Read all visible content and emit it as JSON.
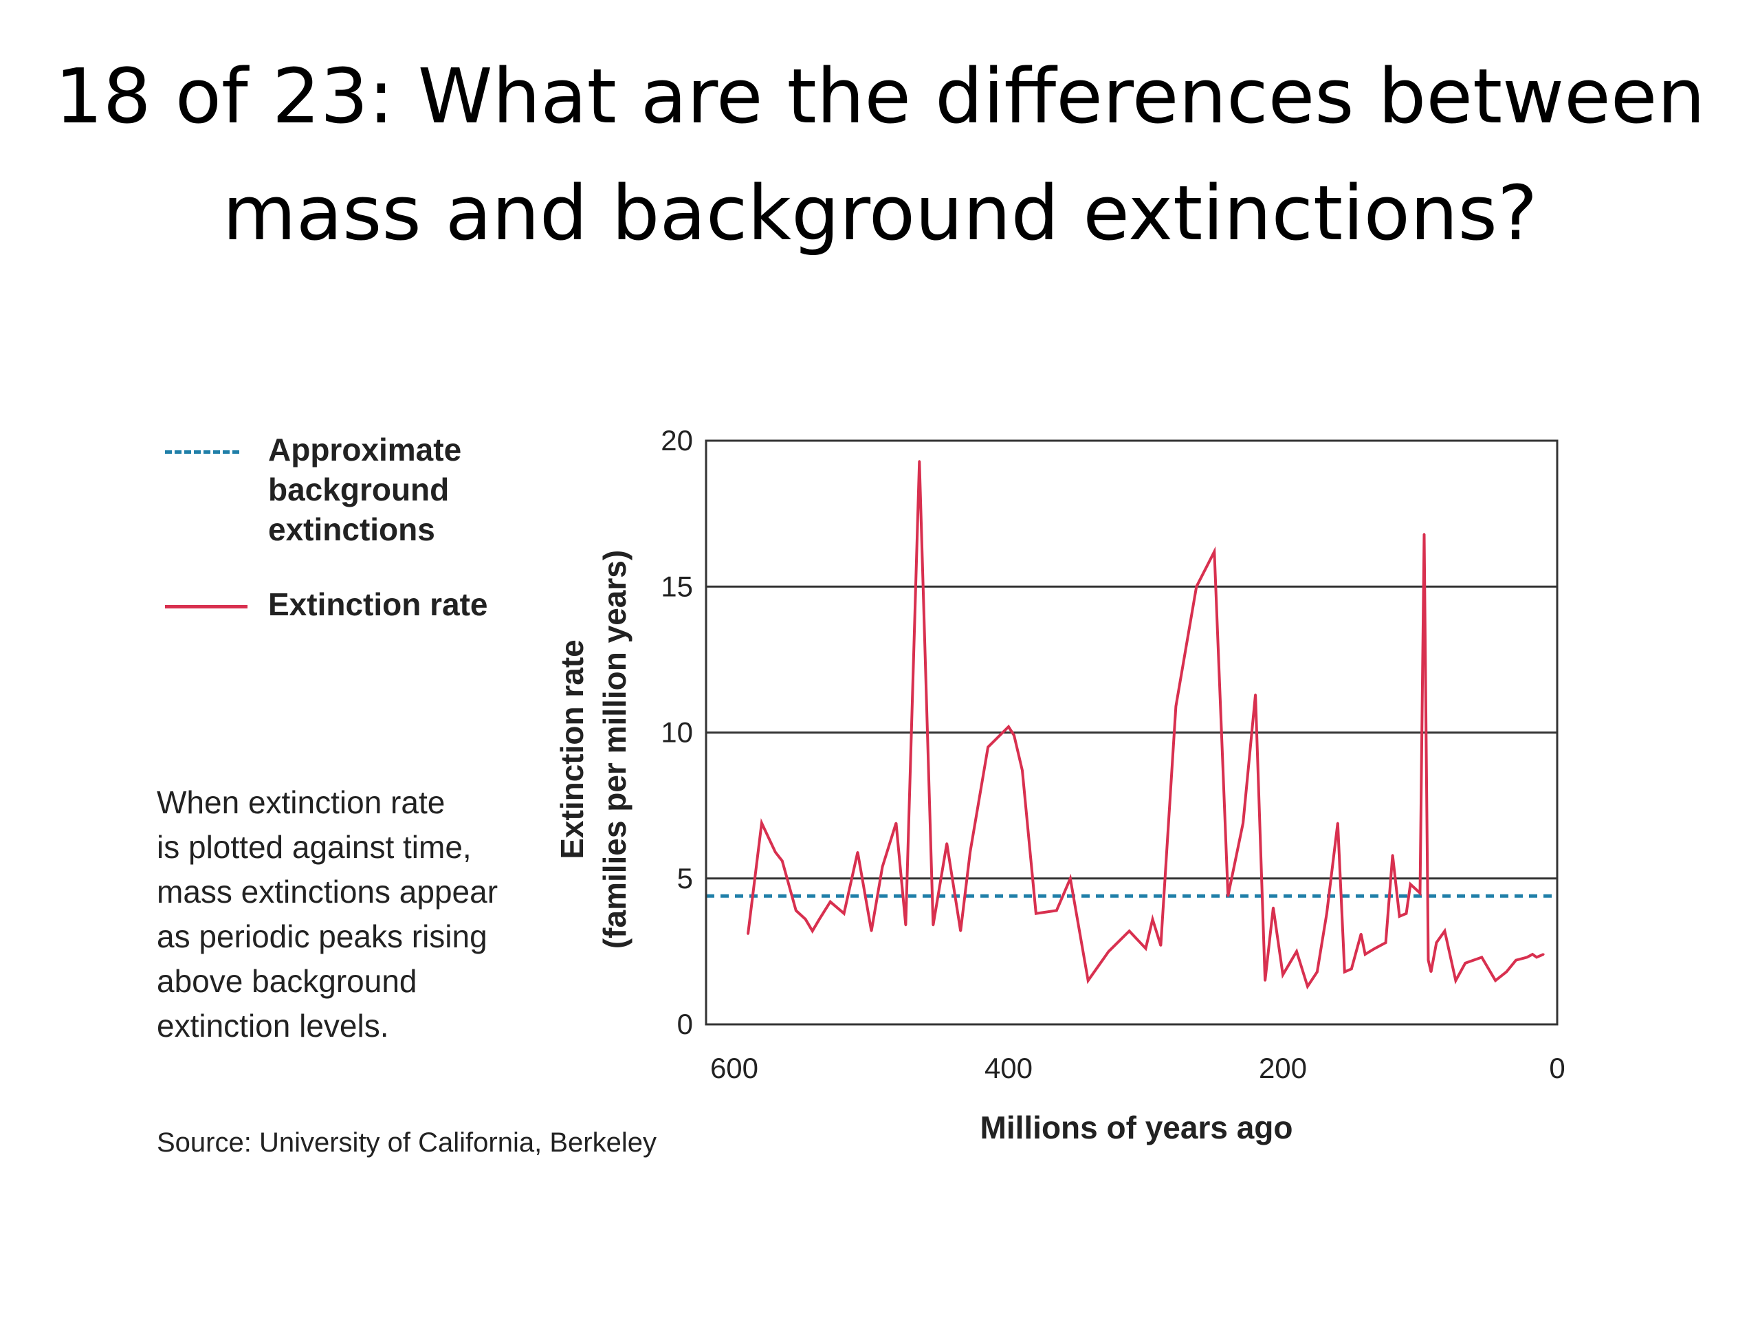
{
  "slide": {
    "title_line1": "18 of 23: What are the differences between",
    "title_line2": "mass and background extinctions?"
  },
  "legend": {
    "background_label_line1": "Approximate",
    "background_label_line2": "background",
    "background_label_line3": "extinctions",
    "rate_label": "Extinction rate"
  },
  "caption": {
    "lines": [
      "When extinction rate",
      "is plotted against time,",
      "mass extinctions appear",
      "as periodic peaks rising",
      "above background",
      "extinction levels."
    ]
  },
  "source": "Source: University of California, Berkeley",
  "colors": {
    "rate_line": "#d8304f",
    "background_line": "#1f7fa8",
    "grid": "#333333"
  },
  "chart_data": {
    "type": "line",
    "xlabel": "Millions of years ago",
    "ylabel_line1": "Extinction rate",
    "ylabel_line2": "(families per million years)",
    "xlim": [
      600,
      0
    ],
    "ylim": [
      0,
      20
    ],
    "x_ticks": [
      600,
      400,
      200,
      0
    ],
    "y_ticks": [
      0,
      5,
      10,
      15,
      20
    ],
    "grid": "horizontal",
    "background_level": 4.4,
    "series": [
      {
        "name": "Extinction rate",
        "x": [
          590,
          580,
          570,
          565,
          555,
          548,
          543,
          538,
          530,
          520,
          510,
          500,
          492,
          482,
          475,
          465,
          455,
          445,
          435,
          428,
          415,
          400,
          396,
          390,
          380,
          365,
          355,
          342,
          327,
          312,
          300,
          295,
          289,
          278,
          263,
          250,
          240,
          229,
          220,
          213,
          207,
          200,
          190,
          182,
          175,
          168,
          160,
          155,
          150,
          143,
          140,
          133,
          125,
          120,
          115,
          110,
          107,
          100,
          97,
          94,
          92,
          88,
          82,
          74,
          67,
          55,
          45,
          37,
          30,
          22,
          18,
          15,
          10
        ],
        "values": [
          3.1,
          6.9,
          5.9,
          5.6,
          3.9,
          3.6,
          3.2,
          3.6,
          4.2,
          3.8,
          5.9,
          3.2,
          5.4,
          6.9,
          3.4,
          19.3,
          3.4,
          6.2,
          3.2,
          5.9,
          9.5,
          10.2,
          9.9,
          8.7,
          3.8,
          3.9,
          5.0,
          1.5,
          2.5,
          3.2,
          2.6,
          3.6,
          2.7,
          10.9,
          15.0,
          16.2,
          4.4,
          6.9,
          11.3,
          1.5,
          4.0,
          1.7,
          2.5,
          1.3,
          1.8,
          3.8,
          6.9,
          1.8,
          1.9,
          3.1,
          2.4,
          2.6,
          2.8,
          5.8,
          3.7,
          3.8,
          4.8,
          4.5,
          16.8,
          2.2,
          1.8,
          2.8,
          3.2,
          1.5,
          2.1,
          2.3,
          1.5,
          1.8,
          2.2,
          2.3,
          2.4,
          2.3,
          2.4
        ]
      }
    ]
  }
}
